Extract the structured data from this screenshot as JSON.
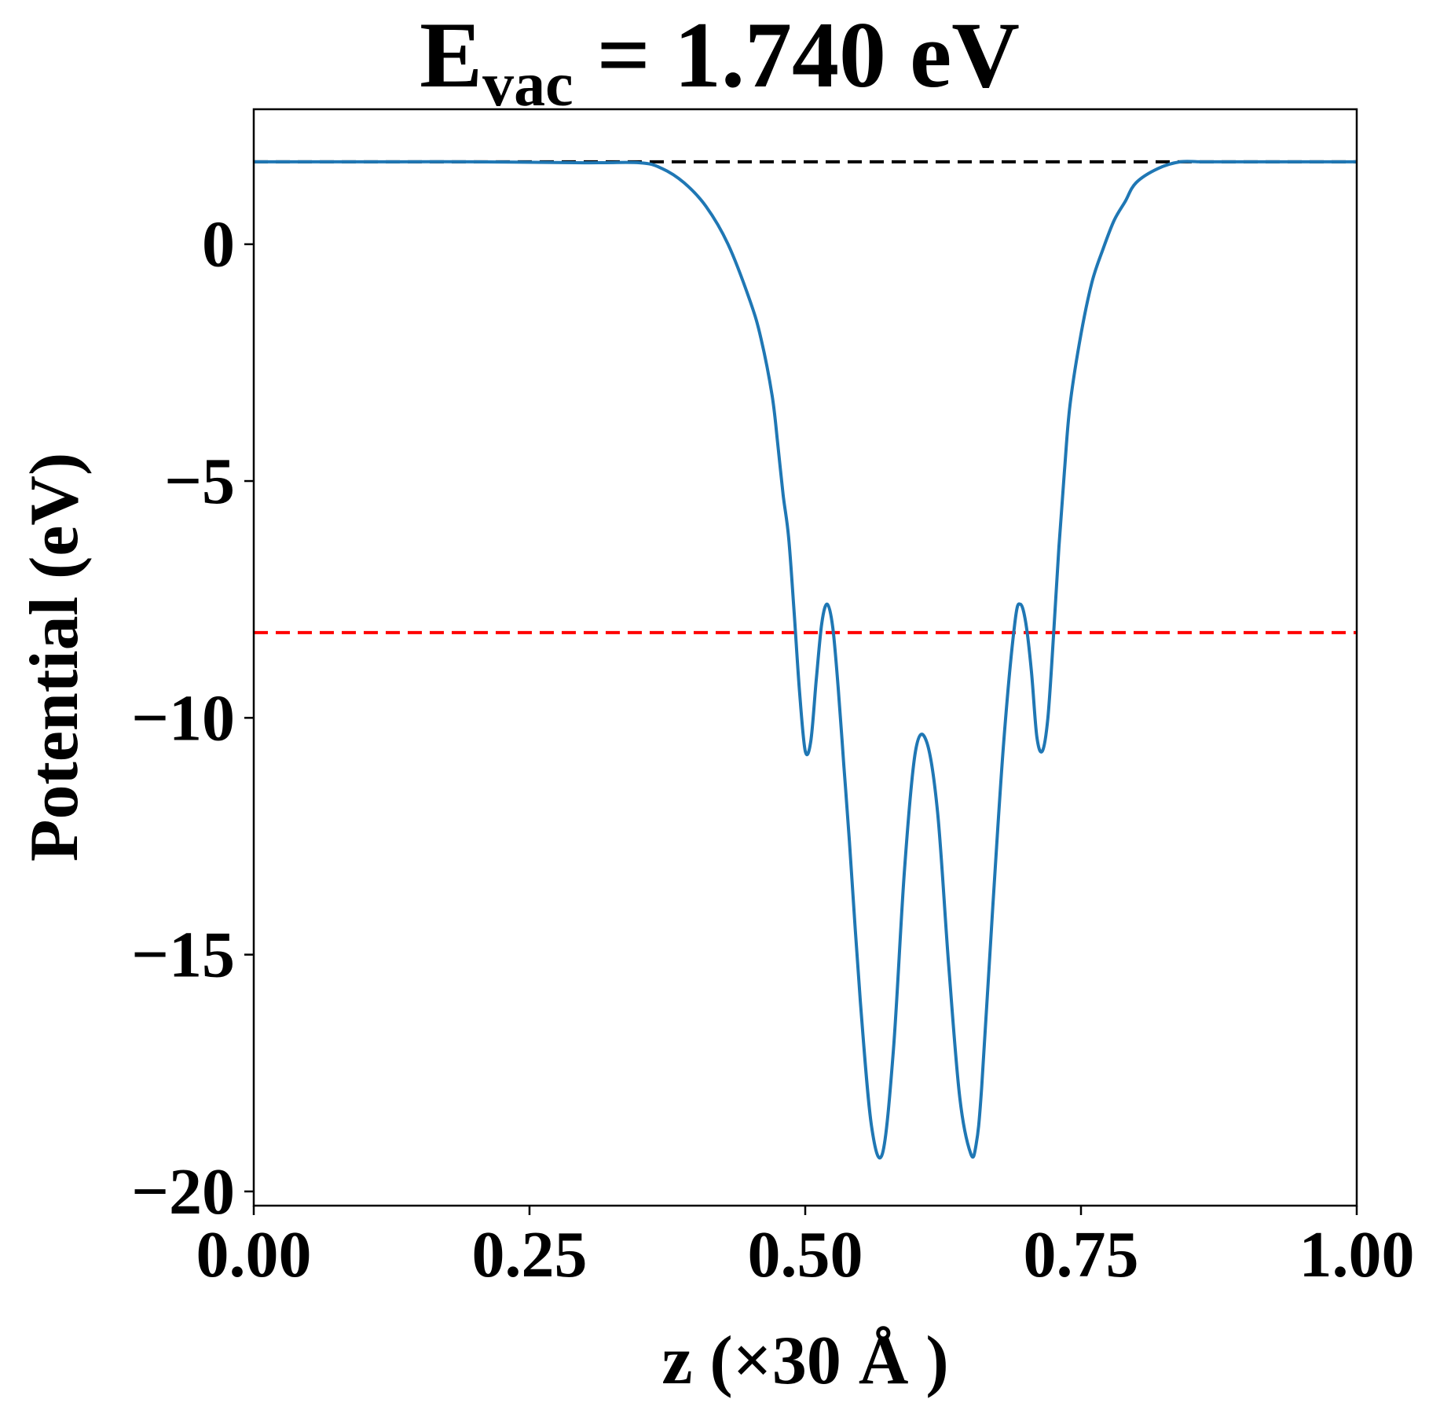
{
  "chart_data": {
    "type": "line",
    "title": {
      "main": "E",
      "subscript": "vac",
      "rest": " = 1.740 eV"
    },
    "xlabel": "z (×30 Å )",
    "ylabel": "Potential (eV)",
    "xlim": [
      0.0,
      1.0
    ],
    "ylim": [
      -20.3,
      2.85
    ],
    "xticks": [
      0.0,
      0.25,
      0.5,
      0.75,
      1.0
    ],
    "xtick_labels": [
      "0.00",
      "0.25",
      "0.50",
      "0.75",
      "1.00"
    ],
    "yticks": [
      0,
      -5,
      -10,
      -15,
      -20
    ],
    "ytick_labels": [
      "0",
      "−5",
      "−10",
      "−15",
      "−20"
    ],
    "grid": false,
    "reference_lines": [
      {
        "y": 1.74,
        "color": "#000000",
        "style": "dashed"
      },
      {
        "y": -8.2,
        "color": "#ff0000",
        "style": "dashed"
      }
    ],
    "series": [
      {
        "color": "#1f77b4",
        "x": [
          0.0,
          0.1,
          0.2,
          0.3,
          0.35,
          0.37,
          0.39,
          0.41,
          0.43,
          0.45,
          0.46,
          0.47,
          0.475,
          0.48,
          0.485,
          0.49,
          0.495,
          0.5,
          0.505,
          0.51,
          0.515,
          0.52,
          0.525,
          0.53,
          0.535,
          0.54,
          0.55,
          0.56,
          0.57,
          0.58,
          0.59,
          0.6,
          0.61,
          0.62,
          0.63,
          0.64,
          0.65,
          0.655,
          0.66,
          0.67,
          0.68,
          0.69,
          0.695,
          0.7,
          0.705,
          0.71,
          0.715,
          0.72,
          0.725,
          0.73,
          0.735,
          0.74,
          0.75,
          0.76,
          0.77,
          0.78,
          0.79,
          0.8,
          0.82,
          0.84,
          0.86,
          0.9,
          1.0
        ],
        "y": [
          1.74,
          1.74,
          1.74,
          1.72,
          1.72,
          1.6,
          1.3,
          0.8,
          0.0,
          -1.2,
          -2.0,
          -3.2,
          -4.2,
          -5.3,
          -6.2,
          -7.8,
          -9.5,
          -10.7,
          -10.5,
          -9.2,
          -8.0,
          -7.6,
          -8.1,
          -9.4,
          -11.0,
          -12.6,
          -16.0,
          -18.6,
          -19.2,
          -17.0,
          -13.2,
          -10.7,
          -10.5,
          -12.0,
          -15.2,
          -18.0,
          -19.2,
          -19.0,
          -17.8,
          -14.0,
          -10.5,
          -8.0,
          -7.6,
          -8.0,
          -9.0,
          -10.4,
          -10.7,
          -10.0,
          -8.3,
          -6.4,
          -4.8,
          -3.4,
          -1.9,
          -0.8,
          -0.1,
          0.5,
          0.9,
          1.3,
          1.6,
          1.74,
          1.74,
          1.74,
          1.74
        ]
      }
    ]
  }
}
